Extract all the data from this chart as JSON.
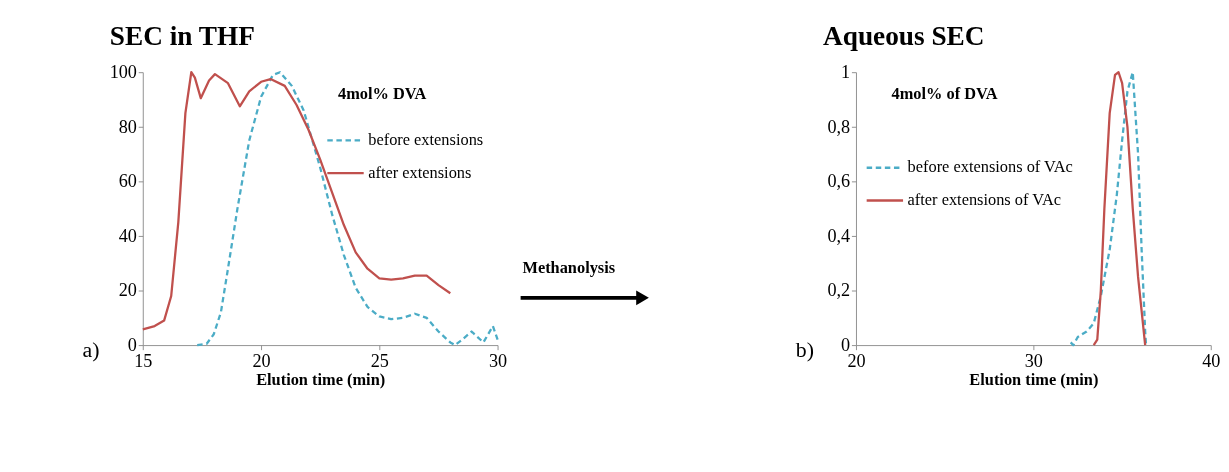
{
  "chart_data": [
    {
      "type": "line",
      "title": "SEC in THF",
      "xlabel": "Elution time (min)",
      "xlim": [
        15,
        30
      ],
      "xticks": [
        15,
        20,
        25,
        30
      ],
      "ylim": [
        0,
        100
      ],
      "yticks": [
        0,
        20,
        40,
        60,
        80,
        100
      ],
      "grid": false,
      "legend": "top right",
      "marker": "none",
      "annotations": [
        "4mol% DVA",
        "a)",
        "Methanolysis"
      ],
      "series": [
        {
          "name": "before extensions",
          "color": "#4bacc6",
          "line_style": "dashed",
          "x": [
            17.3,
            17.7,
            18.0,
            18.3,
            18.6,
            19.0,
            19.5,
            20.0,
            20.5,
            20.8,
            21.3,
            21.8,
            22.0,
            22.5,
            23.0,
            23.5,
            24.0,
            24.5,
            25.0,
            25.5,
            26.0,
            26.5,
            27.0,
            27.5,
            28.0,
            28.2,
            28.5,
            28.9,
            29.4,
            29.8,
            30.0
          ],
          "values": [
            0,
            0.5,
            4,
            12,
            28,
            50,
            75,
            91,
            99,
            100,
            95,
            86,
            80,
            65,
            48,
            33,
            21,
            14,
            10.5,
            9.5,
            10,
            11.5,
            10,
            5,
            1,
            0,
            2,
            5,
            1,
            7,
            2
          ]
        },
        {
          "name": "after extensions",
          "color": "#c0504d",
          "line_style": "solid",
          "x": [
            15.0,
            15.5,
            15.9,
            16.2,
            16.5,
            16.8,
            17.05,
            17.2,
            17.45,
            17.8,
            18.05,
            18.6,
            19.1,
            19.5,
            20.0,
            20.4,
            21.0,
            21.5,
            22.0,
            22.5,
            23.0,
            23.5,
            24.0,
            24.5,
            25.0,
            25.5,
            26.0,
            26.5,
            27.0,
            27.5,
            28.0
          ],
          "values": [
            5.8,
            7,
            9,
            18,
            45,
            85,
            100,
            98,
            90.5,
            97,
            99.3,
            96,
            87.5,
            93,
            96.5,
            97.5,
            95,
            88,
            79,
            68,
            56,
            44,
            34,
            28,
            24.5,
            24,
            24.5,
            25.5,
            25.5,
            22,
            19
          ]
        }
      ]
    },
    {
      "type": "line",
      "title": "Aqueous SEC",
      "xlabel": "Elution time (min)",
      "xlim": [
        20,
        40
      ],
      "xticks": [
        20,
        30,
        40
      ],
      "ylim": [
        0,
        1
      ],
      "yticks": [
        0,
        {
          "value": 0.2,
          "label": "0,2"
        },
        {
          "value": 0.4,
          "label": "0,4"
        },
        {
          "value": 0.6,
          "label": "0,6"
        },
        {
          "value": 0.8,
          "label": "0,8"
        },
        1
      ],
      "grid": false,
      "legend": "top left",
      "marker": "none",
      "annotations": [
        "4mol% of DVA",
        "b)"
      ],
      "series": [
        {
          "name": "before extensions of VAc",
          "color": "#4bacc6",
          "line_style": "dashed",
          "x": [
            32.1,
            32.25,
            32.5,
            33.0,
            33.4,
            33.8,
            34.3,
            34.7,
            35.0,
            35.3,
            35.6,
            35.9,
            36.1,
            36.3,
            36.35
          ],
          "values": [
            0.01,
            0,
            0.03,
            0.05,
            0.08,
            0.18,
            0.35,
            0.55,
            0.75,
            0.93,
            1,
            0.7,
            0.35,
            0.05,
            0
          ]
        },
        {
          "name": "after extensions of VAc",
          "color": "#c0504d",
          "line_style": "solid",
          "x": [
            33.4,
            33.6,
            33.8,
            34.0,
            34.3,
            34.6,
            34.8,
            35.0,
            35.3,
            35.6,
            35.9,
            36.3
          ],
          "values": [
            0,
            0.02,
            0.2,
            0.5,
            0.85,
            0.99,
            1,
            0.96,
            0.8,
            0.5,
            0.25,
            0
          ]
        }
      ]
    }
  ]
}
